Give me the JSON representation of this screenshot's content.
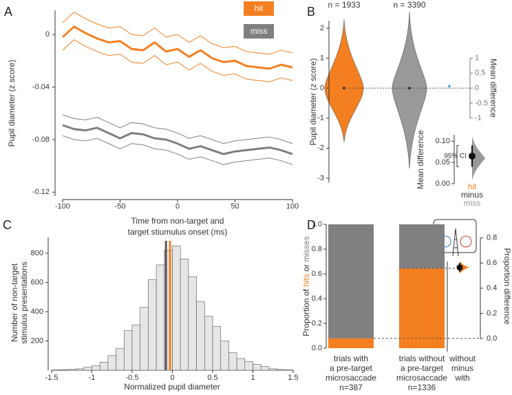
{
  "chart_data": [
    {
      "label": "A",
      "type": "line",
      "ylabel": "Pupil diameter (z score)",
      "xlabel": [
        "Time from non-target and",
        "target stiumulus onset (ms)"
      ],
      "x": [
        -100,
        -90,
        -80,
        -70,
        -60,
        -50,
        -40,
        -30,
        -20,
        -10,
        0,
        10,
        20,
        30,
        40,
        50,
        60,
        70,
        80,
        90,
        100
      ],
      "xlim": [
        -100,
        100
      ],
      "xticks": [
        -100,
        -50,
        0,
        50,
        100
      ],
      "ylim": [
        -0.123,
        0.0184
      ],
      "yticks": [
        0,
        -0.04,
        -0.08,
        -0.12
      ],
      "series": [
        {
          "name": "hit",
          "color": "#f47f20",
          "values": [
            -0.002,
            0.006,
            0.001,
            -0.003,
            -0.006,
            -0.005,
            -0.011,
            -0.012,
            -0.006,
            -0.013,
            -0.011,
            -0.017,
            -0.012,
            -0.018,
            -0.021,
            -0.02,
            -0.024,
            -0.025,
            -0.026,
            -0.023,
            -0.025
          ],
          "ci_upper": [
            0.009,
            0.017,
            0.012,
            0.008,
            0.005,
            0.006,
            0,
            -0.001,
            0.005,
            -0.002,
            0,
            -0.006,
            -0.001,
            -0.007,
            -0.01,
            -0.009,
            -0.013,
            -0.014,
            -0.015,
            -0.012,
            -0.014
          ],
          "ci_lower": [
            -0.012,
            -0.004,
            -0.009,
            -0.013,
            -0.016,
            -0.015,
            -0.021,
            -0.022,
            -0.016,
            -0.023,
            -0.021,
            -0.027,
            -0.022,
            -0.028,
            -0.031,
            -0.03,
            -0.034,
            -0.035,
            -0.036,
            -0.033,
            -0.035
          ]
        },
        {
          "name": "miss",
          "color": "#7f7f7f",
          "values": [
            -0.069,
            -0.072,
            -0.073,
            -0.071,
            -0.075,
            -0.079,
            -0.075,
            -0.076,
            -0.079,
            -0.08,
            -0.083,
            -0.087,
            -0.085,
            -0.088,
            -0.091,
            -0.089,
            -0.088,
            -0.087,
            -0.086,
            -0.088,
            -0.091
          ],
          "ci_upper": [
            -0.061,
            -0.064,
            -0.065,
            -0.063,
            -0.067,
            -0.071,
            -0.067,
            -0.068,
            -0.071,
            -0.072,
            -0.075,
            -0.079,
            -0.077,
            -0.08,
            -0.083,
            -0.081,
            -0.08,
            -0.079,
            -0.078,
            -0.08,
            -0.083
          ],
          "ci_lower": [
            -0.077,
            -0.08,
            -0.081,
            -0.079,
            -0.083,
            -0.087,
            -0.083,
            -0.084,
            -0.087,
            -0.088,
            -0.091,
            -0.095,
            -0.093,
            -0.096,
            -0.099,
            -0.097,
            -0.096,
            -0.095,
            -0.094,
            -0.096,
            -0.099
          ]
        }
      ]
    },
    {
      "label": "B",
      "type": "violin",
      "ylabel": "Pupil diameter (z score)",
      "ylim": [
        -3.14,
        2.25
      ],
      "yticks": [
        -3,
        -2,
        -1,
        0,
        1,
        2
      ],
      "groups": [
        {
          "n_label": "n = 1933",
          "color": "#f47f20"
        },
        {
          "n_label": "n = 3390",
          "color": "#999999"
        }
      ],
      "values": [
        0,
        0
      ],
      "y2label": "Mean difference",
      "y2ticks": [
        1,
        0.5,
        0,
        -0.5,
        -1
      ],
      "inset": {
        "ylabel": "Mean difference",
        "ylim": [
          0,
          0.115
        ],
        "yticks": [
          {
            "value": 0,
            "label": "0.00"
          },
          {
            "value": 0.05,
            "label": "0.05"
          },
          {
            "value": 0.1,
            "label": "0.10"
          }
        ],
        "value": 0.065,
        "ci": [
          0.04,
          0.09
        ],
        "ci_label": "95% CI",
        "xlabel": [
          "hit",
          "minus",
          "miss"
        ],
        "xlabel_colors": [
          "#f47f20",
          "#333333",
          "#999999"
        ]
      }
    },
    {
      "label": "C",
      "type": "histogram",
      "ylabel": [
        "Number of non-target",
        "stimulus presentations"
      ],
      "xlabel": "Normalized pupil diameter",
      "bins": [
        -1.5,
        -1.4,
        -1.3,
        -1.2,
        -1.1,
        -1.0,
        -0.9,
        -0.8,
        -0.7,
        -0.6,
        -0.5,
        -0.4,
        -0.3,
        -0.2,
        -0.1,
        0,
        0.1,
        0.2,
        0.3,
        0.4,
        0.5,
        0.6,
        0.7,
        0.8,
        0.9,
        1.0,
        1.1,
        1.2,
        1.3,
        1.4,
        1.5
      ],
      "values": [
        2,
        3,
        5,
        10,
        20,
        30,
        55,
        100,
        150,
        270,
        310,
        430,
        620,
        720,
        820,
        850,
        760,
        640,
        470,
        370,
        300,
        200,
        120,
        80,
        60,
        40,
        25,
        10,
        5,
        2
      ],
      "color": "#e6e6e6",
      "xlim": [
        -1.5,
        1.5
      ],
      "xticks": [
        -1.5,
        -1,
        -0.5,
        0,
        0.5,
        1,
        1.5
      ],
      "ylim": [
        0,
        908
      ],
      "yticks": [
        200,
        400,
        600,
        800
      ],
      "lines": [
        {
          "value": -0.08,
          "color": "#555555"
        },
        {
          "value": -0.03,
          "color": "#f47f20"
        }
      ]
    },
    {
      "label": "D",
      "type": "stacked_bar",
      "ylabel": [
        "Proportion of ",
        "hits",
        " or ",
        "misses"
      ],
      "categories": [
        [
          "trials with",
          "a pre-target",
          "microsaccade",
          "n=387"
        ],
        [
          "trials without",
          "a pre-target",
          "microsaccade",
          "n=1336"
        ]
      ],
      "series": [
        {
          "name": "hits",
          "color": "#f47f20",
          "values": [
            0.08,
            0.645
          ]
        },
        {
          "name": "misses",
          "color": "#808080",
          "values": [
            0.92,
            0.355
          ]
        }
      ],
      "ylim": [
        -0.03,
        1.03
      ],
      "yticks": [
        {
          "value": 0,
          "label": "0.0"
        },
        {
          "value": 0.2,
          "label": "0.2"
        },
        {
          "value": 0.4,
          "label": "0.4"
        },
        {
          "value": 0.6,
          "label": "0.6"
        },
        {
          "value": 0.8,
          "label": "0.8"
        },
        {
          "value": 1,
          "label": "1.0"
        }
      ],
      "y2label": "Proportion difference",
      "y2lim": [
        -0.106,
        0.937
      ],
      "y2ticks": [
        {
          "value": 0,
          "label": "0.0"
        },
        {
          "value": 0.2,
          "label": "0.2"
        },
        {
          "value": 0.4,
          "label": "0.4"
        },
        {
          "value": 0.6,
          "label": "0.6"
        },
        {
          "value": 0.8,
          "label": "0.8"
        }
      ],
      "difference": {
        "value": 0.565,
        "ci": [
          0.53,
          0.6
        ],
        "label": [
          "without",
          "minus",
          "with"
        ]
      }
    }
  ]
}
